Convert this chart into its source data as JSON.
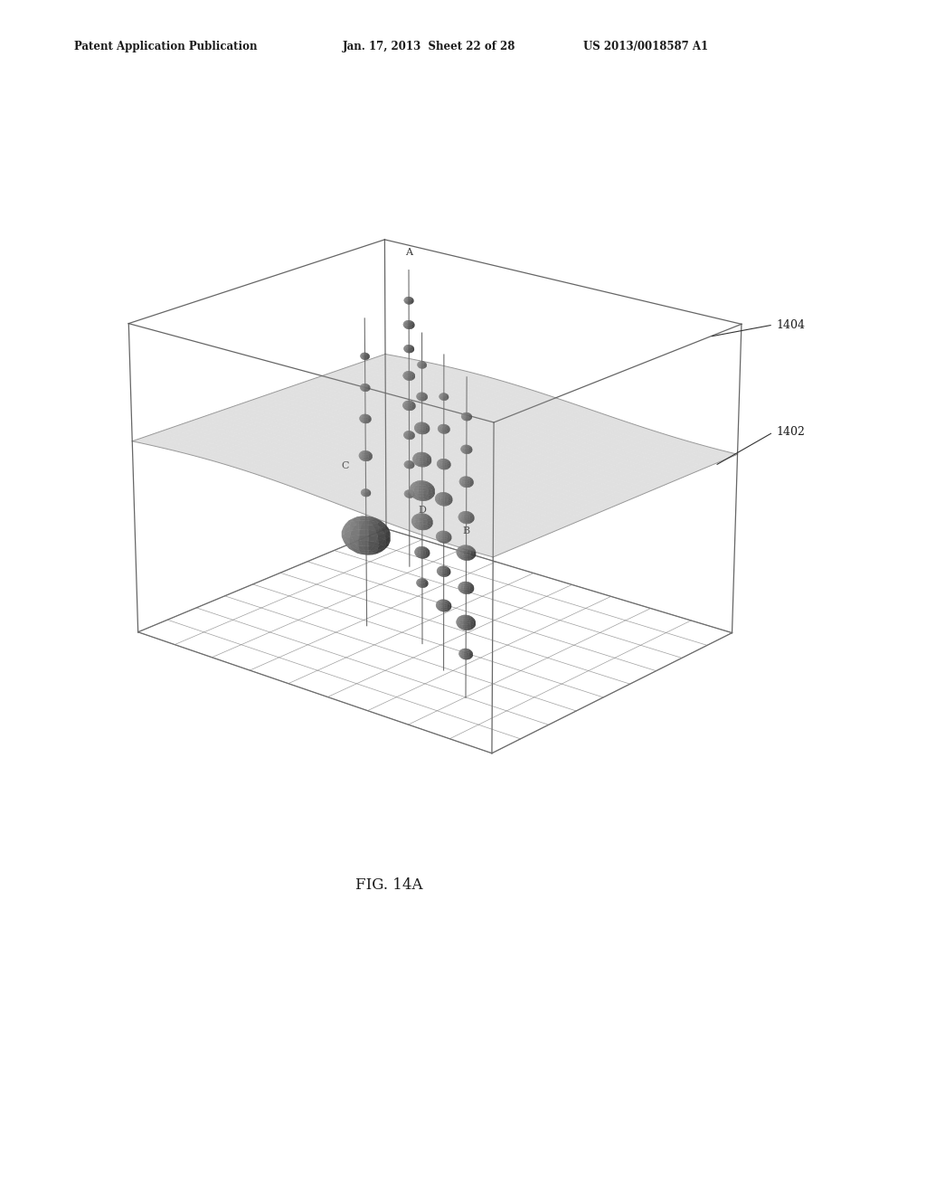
{
  "header_left": "Patent Application Publication",
  "header_center": "Jan. 17, 2013  Sheet 22 of 28",
  "header_right": "US 2013/0018587 A1",
  "caption": "FIG. 14A",
  "label_1402": "1402",
  "label_1404": "1404",
  "label_A": "A",
  "label_B": "B",
  "label_C": "C",
  "label_D": "D",
  "bg_color": "#ffffff",
  "line_color": "#555555",
  "sphere_color": "#888888",
  "plane_color": "#bbbbbb",
  "grid_color": "#777777"
}
